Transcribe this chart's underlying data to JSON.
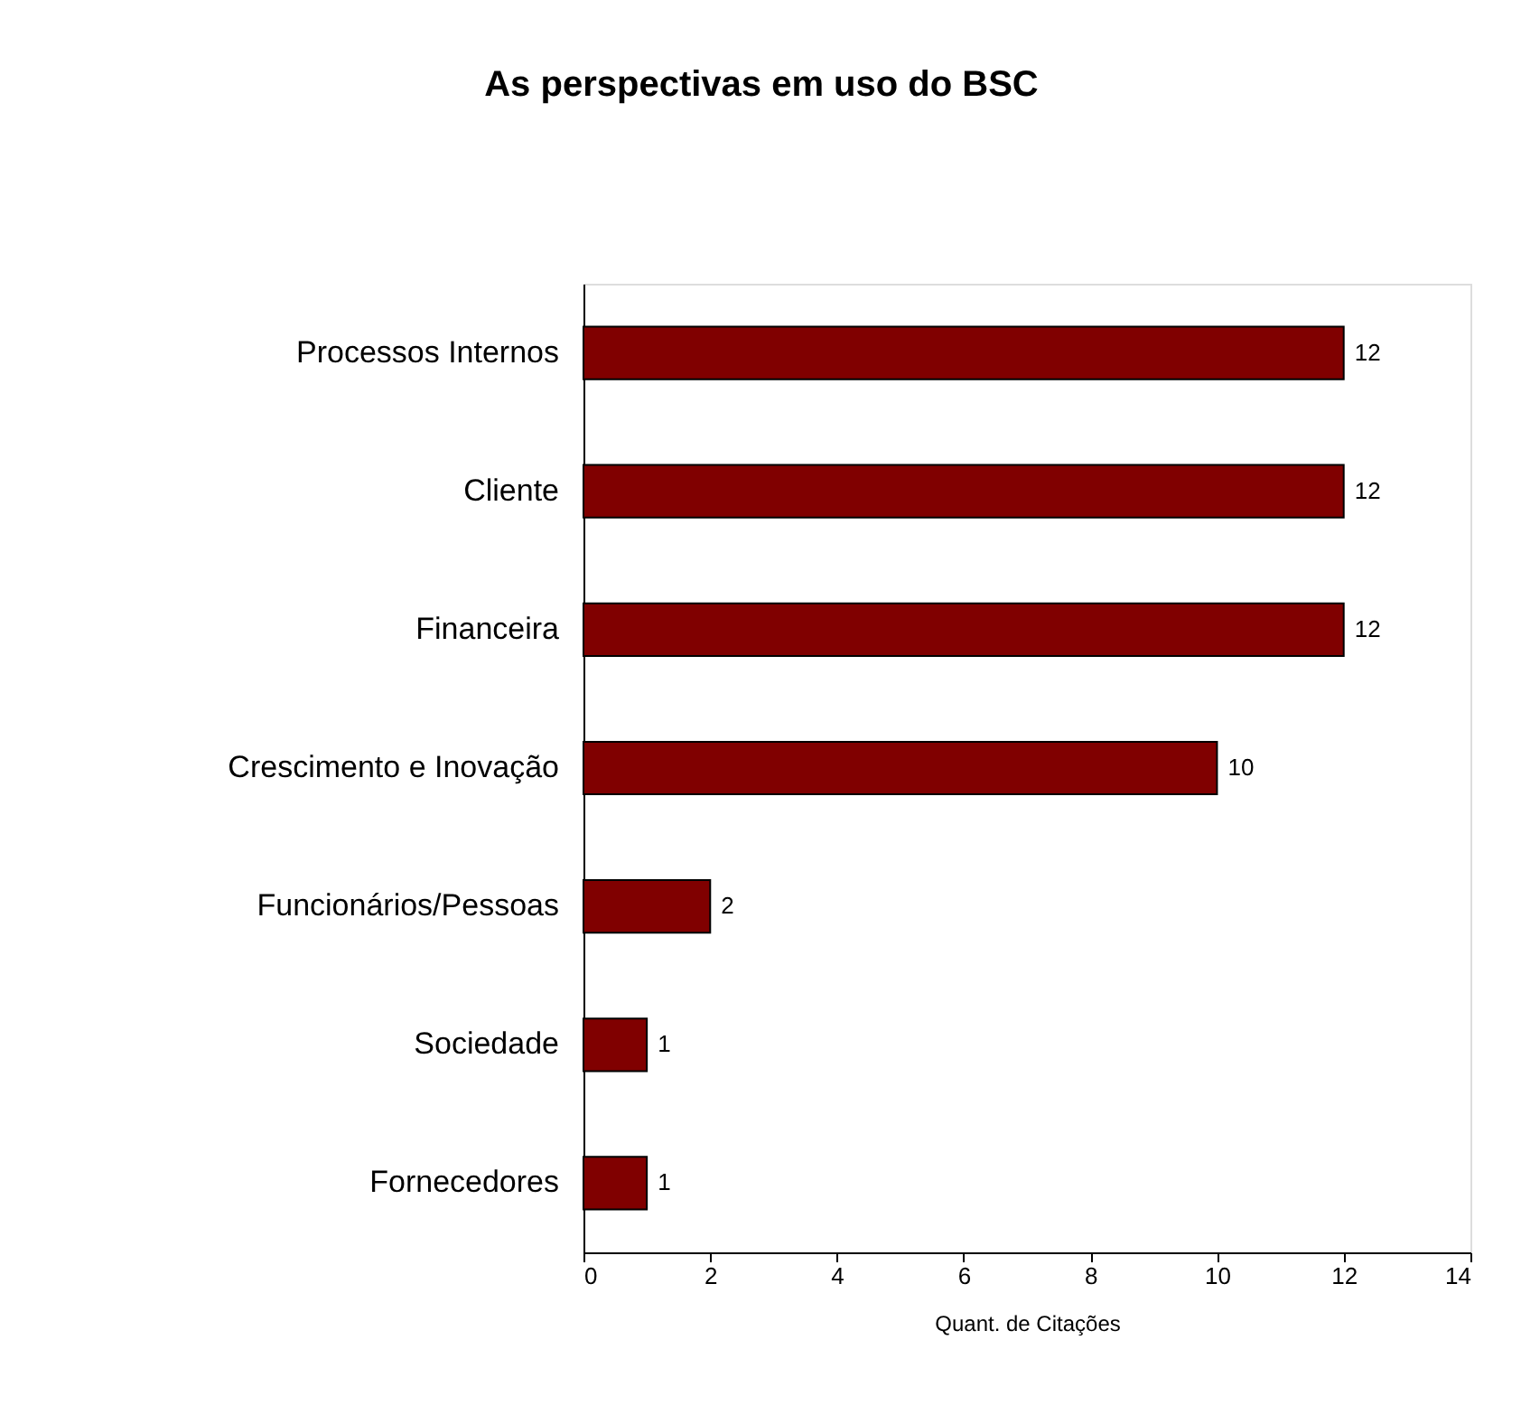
{
  "chart_data": {
    "type": "bar",
    "orientation": "horizontal",
    "title": "As perspectivas em uso do BSC",
    "xlabel": "Quant. de Citações",
    "categories": [
      "Processos Internos",
      "Cliente",
      "Financeira",
      "Crescimento e Inovação",
      "Funcionários/Pessoas",
      "Sociedade",
      "Fornecedores"
    ],
    "values": [
      12,
      12,
      12,
      10,
      2,
      1,
      1
    ],
    "color": "#800000",
    "xlim": [
      0,
      14
    ],
    "xticks": [
      0,
      2,
      4,
      6,
      8,
      10,
      12,
      14
    ],
    "grid": false,
    "data_labels": true
  }
}
